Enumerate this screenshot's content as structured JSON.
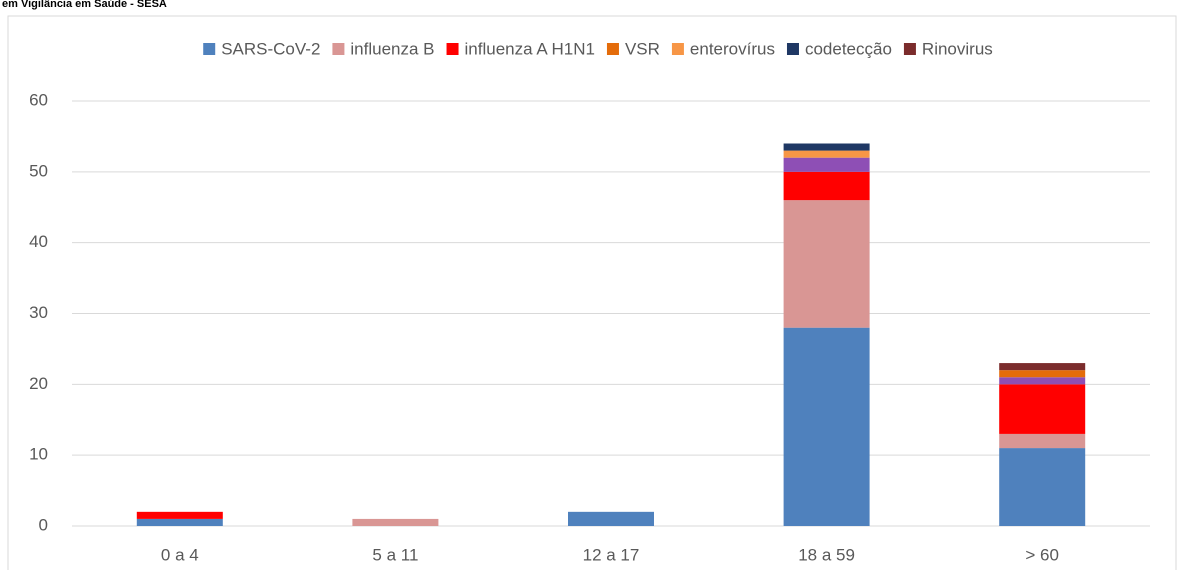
{
  "chart_data": {
    "type": "stacked_bar",
    "subtitle": "em Vigilância em Saúde - SESA",
    "categories": [
      "0 a 4",
      "5 a 11",
      "12 a 17",
      "18 a 59",
      "> 60"
    ],
    "series": [
      {
        "name": "SARS-CoV-2",
        "color": "#4f81bd",
        "values": [
          1,
          0,
          2,
          28,
          11
        ]
      },
      {
        "name": "influenza B",
        "color": "#d99694",
        "values": [
          0,
          1,
          0,
          18,
          2
        ]
      },
      {
        "name": "influenza A H1N1",
        "color": "#ff0000",
        "values": [
          1,
          0,
          0,
          4,
          7
        ]
      },
      {
        "color": "#8e4fb5",
        "values": [
          0,
          0,
          0,
          2,
          1
        ]
      },
      {
        "name": "VSR",
        "color": "#e46c0a",
        "values": [
          0,
          0,
          0,
          0,
          1
        ]
      },
      {
        "name": "enterovírus",
        "color": "#f79646",
        "values": [
          0,
          0,
          0,
          1,
          0
        ]
      },
      {
        "name": "codetecção",
        "color": "#1f3864",
        "values": [
          0,
          0,
          0,
          1,
          0
        ]
      },
      {
        "name": "Rinovirus",
        "color": "#7b2c2c",
        "values": [
          0,
          0,
          0,
          0,
          1
        ]
      }
    ],
    "ylim": [
      0,
      60
    ],
    "yticks": [
      0,
      10,
      20,
      30,
      40,
      50,
      60
    ],
    "grid": true,
    "legend": "top"
  }
}
